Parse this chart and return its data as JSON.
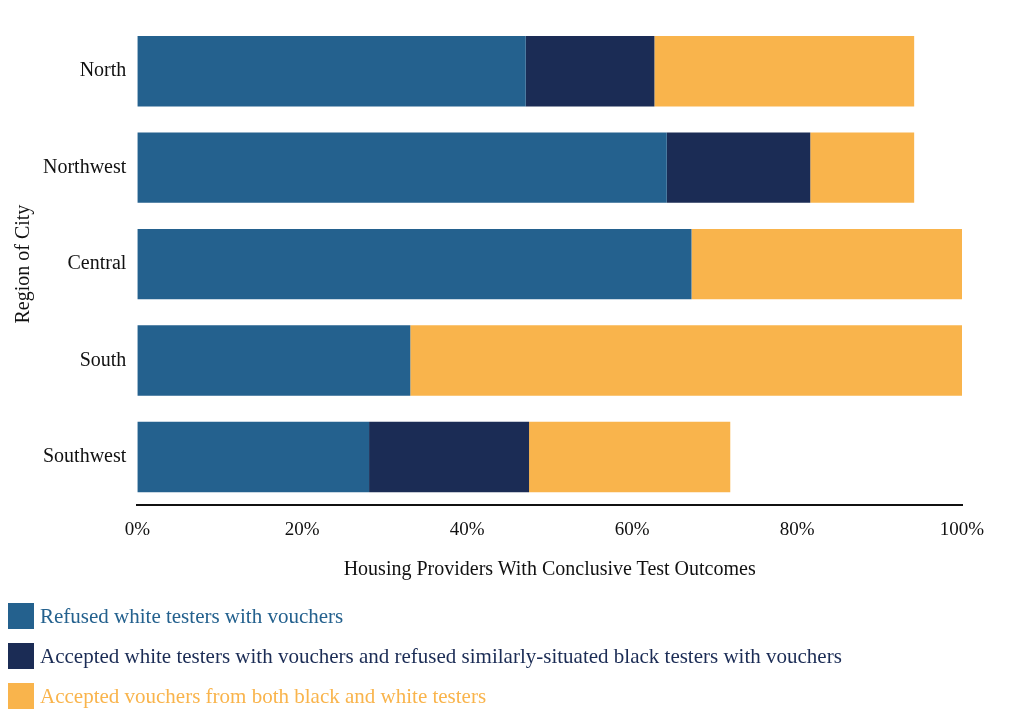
{
  "chart_data": {
    "type": "bar",
    "orientation": "horizontal",
    "stacked": true,
    "ylabel": "Region of City",
    "xlabel": "Housing Providers With Conclusive Test Outcomes",
    "categories": [
      "North",
      "Northwest",
      "Central",
      "South",
      "Southwest"
    ],
    "series": [
      {
        "name": "Refused white testers with vouchers",
        "color": "#24618e",
        "values": [
          47.1,
          64.2,
          67.2,
          33.1,
          28.1
        ]
      },
      {
        "name": "Accepted white testers with vouchers and refused similarly-situated black testers with vouchers",
        "color": "#1b2c55",
        "values": [
          15.6,
          17.4,
          0,
          0,
          19.4
        ]
      },
      {
        "name": "Accepted vouchers from both black and white testers",
        "color": "#f9b44c",
        "values": [
          31.5,
          12.6,
          32.8,
          66.9,
          24.4
        ]
      }
    ],
    "xlim": [
      0,
      100
    ],
    "xticks": [
      {
        "value": 0,
        "label": "0%"
      },
      {
        "value": 20,
        "label": "20%"
      },
      {
        "value": 40,
        "label": "40%"
      },
      {
        "value": 60,
        "label": "60%"
      },
      {
        "value": 80,
        "label": "80%"
      },
      {
        "value": 100,
        "label": "100%"
      }
    ],
    "grid": false,
    "legend": "bottom"
  }
}
